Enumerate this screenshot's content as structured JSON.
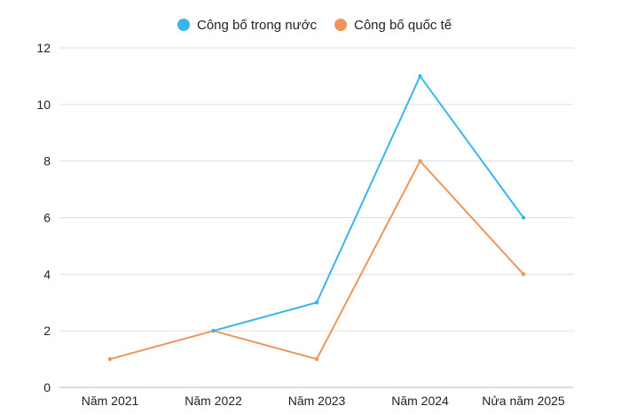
{
  "chart_data": {
    "type": "line",
    "categories": [
      "Năm 2021",
      "Năm 2022",
      "Năm 2023",
      "Năm 2024",
      "Nửa năm 2025"
    ],
    "series": [
      {
        "name": "Công bố trong nước",
        "color": "#3db5ec",
        "values": [
          null,
          2,
          3,
          11,
          6
        ]
      },
      {
        "name": "Công bố quốc tế",
        "color": "#f0955a",
        "values": [
          1,
          2,
          1,
          8,
          4
        ]
      }
    ],
    "ylim": [
      0,
      12
    ],
    "yticks": [
      0,
      2,
      4,
      6,
      8,
      10,
      12
    ],
    "grid": true,
    "legend": "top-center",
    "title": "",
    "xlabel": "",
    "ylabel": ""
  }
}
